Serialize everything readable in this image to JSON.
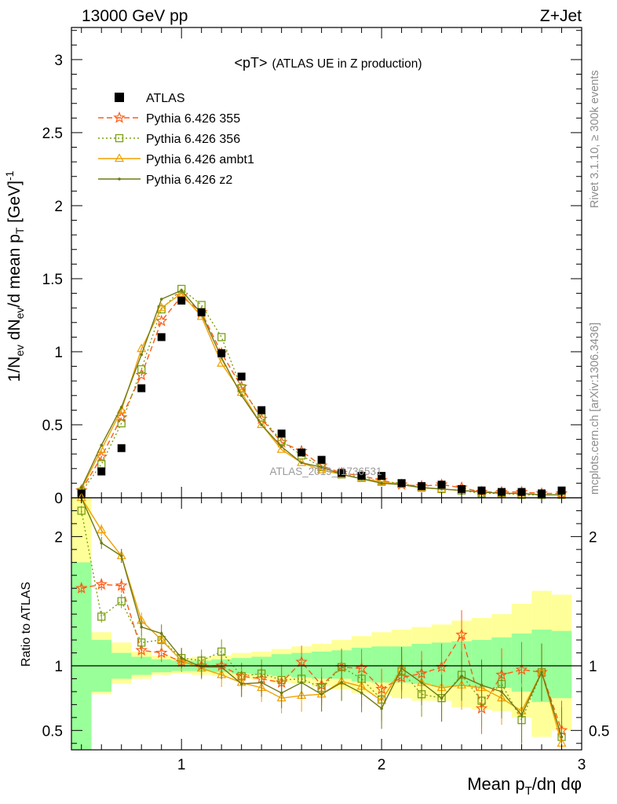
{
  "header": {
    "left": "13000 GeV pp",
    "right": "Z+Jet"
  },
  "side_labels": {
    "top": "Rivet 3.1.10, ≥ 300k events",
    "bottom": "mcplots.cern.ch [arXiv:1306.3436]"
  },
  "watermark": "ATLAS_2019_I1736531",
  "chart_data": {
    "type": "line",
    "title": "<pT> (ATLAS UE in Z production)",
    "title_main": "<pT>",
    "title_sub": "(ATLAS UE in Z production)",
    "xlabel": "Mean pT/dη dφ",
    "ylabel": "1/Nev dNev/d mean pT [GeV]^-1",
    "ratio_ylabel": "Ratio to ATLAS",
    "xlim": [
      0.45,
      3.0
    ],
    "ylim": [
      0,
      3.22
    ],
    "ratio_ylim": [
      0.35,
      2.3
    ],
    "x_ticks": [
      1,
      2,
      3
    ],
    "x_ticklabels": [
      "1",
      "2",
      "3"
    ],
    "y_ticks": [
      0,
      0.5,
      1,
      1.5,
      2,
      2.5,
      3
    ],
    "y_ticklabels": [
      "0",
      "0.5",
      "1",
      "1.5",
      "2",
      "2.5",
      "3"
    ],
    "ratio_ticks": [
      0.5,
      1,
      2
    ],
    "ratio_ticklabels": [
      "0.5",
      "1",
      "2"
    ],
    "x": [
      0.5,
      0.6,
      0.7,
      0.8,
      0.9,
      1.0,
      1.1,
      1.2,
      1.3,
      1.4,
      1.5,
      1.6,
      1.7,
      1.8,
      1.9,
      2.0,
      2.1,
      2.2,
      2.3,
      2.4,
      2.5,
      2.6,
      2.7,
      2.8,
      2.9
    ],
    "bin_edges": [
      0.45,
      0.55,
      0.65,
      0.75,
      0.85,
      0.95,
      1.05,
      1.15,
      1.25,
      1.35,
      1.45,
      1.55,
      1.65,
      1.75,
      1.85,
      1.95,
      2.05,
      2.15,
      2.25,
      2.35,
      2.45,
      2.55,
      2.65,
      2.75,
      2.85,
      2.95
    ],
    "data": {
      "name": "ATLAS",
      "values": [
        0.03,
        0.18,
        0.34,
        0.75,
        1.1,
        1.35,
        1.27,
        0.99,
        0.83,
        0.6,
        0.44,
        0.31,
        0.26,
        0.17,
        0.15,
        0.15,
        0.1,
        0.08,
        0.09,
        0.06,
        0.05,
        0.04,
        0.04,
        0.03,
        0.05
      ]
    },
    "bands": {
      "inner": [
        [
          0.35,
          1.8
        ],
        [
          0.8,
          1.2
        ],
        [
          0.9,
          1.1
        ],
        [
          0.93,
          1.07
        ],
        [
          0.95,
          1.05
        ],
        [
          0.96,
          1.04
        ],
        [
          0.96,
          1.04
        ],
        [
          0.95,
          1.05
        ],
        [
          0.94,
          1.06
        ],
        [
          0.93,
          1.07
        ],
        [
          0.92,
          1.09
        ],
        [
          0.91,
          1.1
        ],
        [
          0.9,
          1.11
        ],
        [
          0.9,
          1.12
        ],
        [
          0.88,
          1.14
        ],
        [
          0.87,
          1.15
        ],
        [
          0.87,
          1.15
        ],
        [
          0.86,
          1.17
        ],
        [
          0.84,
          1.18
        ],
        [
          0.84,
          1.19
        ],
        [
          0.83,
          1.2
        ],
        [
          0.83,
          1.22
        ],
        [
          0.8,
          1.25
        ],
        [
          0.72,
          1.28
        ],
        [
          0.75,
          1.27
        ]
      ],
      "outer": [
        [
          0.35,
          2.3
        ],
        [
          0.78,
          1.26
        ],
        [
          0.86,
          1.18
        ],
        [
          0.9,
          1.11
        ],
        [
          0.93,
          1.08
        ],
        [
          0.94,
          1.06
        ],
        [
          0.93,
          1.07
        ],
        [
          0.92,
          1.08
        ],
        [
          0.9,
          1.1
        ],
        [
          0.89,
          1.11
        ],
        [
          0.87,
          1.13
        ],
        [
          0.86,
          1.15
        ],
        [
          0.84,
          1.17
        ],
        [
          0.82,
          1.2
        ],
        [
          0.79,
          1.23
        ],
        [
          0.77,
          1.26
        ],
        [
          0.75,
          1.28
        ],
        [
          0.73,
          1.3
        ],
        [
          0.73,
          1.32
        ],
        [
          0.68,
          1.35
        ],
        [
          0.66,
          1.37
        ],
        [
          0.65,
          1.4
        ],
        [
          0.6,
          1.48
        ],
        [
          0.45,
          1.58
        ],
        [
          0.5,
          1.55
        ]
      ]
    },
    "series": [
      {
        "name": "Pythia 6.426 355",
        "color": "#ff5a14",
        "dash": "7,4",
        "marker": "star",
        "values": [
          0.05,
          0.28,
          0.55,
          0.84,
          1.21,
          1.38,
          1.27,
          0.99,
          0.76,
          0.54,
          0.38,
          0.32,
          0.22,
          0.17,
          0.15,
          0.12,
          0.09,
          0.08,
          0.09,
          0.07,
          0.04,
          0.04,
          0.04,
          0.03,
          0.03
        ],
        "ratio": [
          1.6,
          1.63,
          1.62,
          1.12,
          1.1,
          1.03,
          1.0,
          1.0,
          0.92,
          0.9,
          0.87,
          1.03,
          0.85,
          0.99,
          0.98,
          0.82,
          0.91,
          0.94,
          0.99,
          1.24,
          0.67,
          0.93,
          0.97,
          0.95,
          0.5
        ]
      },
      {
        "name": "Pythia 6.426 356",
        "color": "#7aa012",
        "dash": "2,3",
        "marker": "square",
        "values": [
          0.04,
          0.23,
          0.51,
          0.88,
          1.29,
          1.43,
          1.32,
          1.1,
          0.75,
          0.55,
          0.39,
          0.29,
          0.21,
          0.16,
          0.14,
          0.11,
          0.1,
          0.07,
          0.06,
          0.05,
          0.03,
          0.03,
          0.02,
          0.02,
          0.02
        ],
        "ratio": [
          2.2,
          1.38,
          1.5,
          1.18,
          1.2,
          1.06,
          1.04,
          1.11,
          0.92,
          0.94,
          0.89,
          0.9,
          0.83,
          0.99,
          0.9,
          0.74,
          0.96,
          0.78,
          0.75,
          0.93,
          0.73,
          0.86,
          0.58,
          0.95,
          0.45
        ]
      },
      {
        "name": "Pythia 6.426 ambt1",
        "color": "#f0a000",
        "dash": "",
        "marker": "triangle",
        "values": [
          0.06,
          0.33,
          0.6,
          1.02,
          1.3,
          1.4,
          1.24,
          0.92,
          0.72,
          0.5,
          0.33,
          0.24,
          0.19,
          0.16,
          0.13,
          0.11,
          0.09,
          0.07,
          0.06,
          0.05,
          0.04,
          0.03,
          0.03,
          0.02,
          0.02
        ],
        "ratio": [
          2.4,
          2.05,
          1.85,
          1.35,
          1.2,
          1.04,
          0.98,
          0.93,
          0.87,
          0.83,
          0.75,
          0.77,
          0.78,
          0.88,
          0.84,
          0.73,
          0.98,
          0.87,
          0.83,
          0.85,
          0.83,
          0.75,
          0.65,
          0.95,
          0.4
        ]
      },
      {
        "name": "Pythia 6.426 z2",
        "color": "#6e7a14",
        "dash": "",
        "marker": "dot",
        "values": [
          0.07,
          0.36,
          0.62,
          0.98,
          1.36,
          1.42,
          1.26,
          0.96,
          0.7,
          0.5,
          0.35,
          0.24,
          0.21,
          0.16,
          0.13,
          0.1,
          0.09,
          0.07,
          0.06,
          0.05,
          0.04,
          0.03,
          0.03,
          0.02,
          0.02
        ],
        "ratio": [
          2.3,
          1.95,
          1.85,
          1.3,
          1.25,
          1.06,
          0.99,
          0.99,
          0.86,
          0.87,
          0.79,
          0.87,
          0.78,
          0.87,
          0.79,
          0.67,
          0.98,
          0.87,
          0.75,
          0.92,
          0.85,
          0.8,
          0.62,
          0.95,
          0.45
        ]
      }
    ]
  }
}
